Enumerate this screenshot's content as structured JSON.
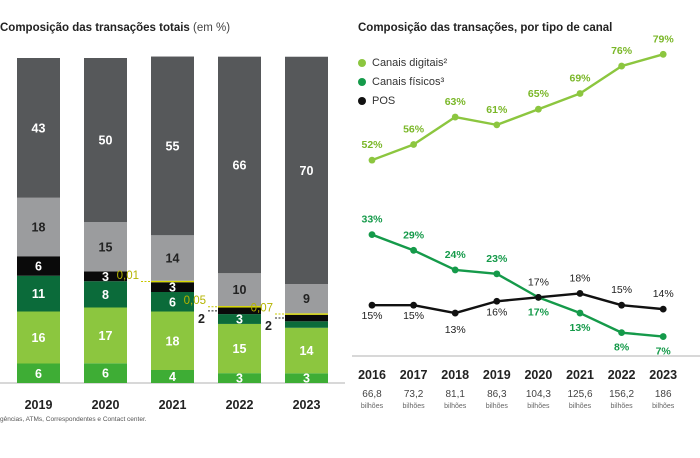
{
  "chart_data": [
    {
      "type": "bar",
      "stacked": true,
      "title": "Composição das transações totais",
      "title_unit": "(em %)",
      "categories": [
        "2019",
        "2020",
        "2021",
        "2022",
        "2023"
      ],
      "series": [
        {
          "segment": 1,
          "color": "#3ead35",
          "values": [
            6,
            6,
            4,
            3,
            3
          ]
        },
        {
          "segment": 2,
          "color": "#8cc63f",
          "values": [
            16,
            17,
            18,
            15,
            14
          ]
        },
        {
          "segment": 3,
          "color": "#0b6b3a",
          "values": [
            11,
            8,
            6,
            3,
            2
          ]
        },
        {
          "segment": 4,
          "color": "#0a0a0a",
          "values": [
            6,
            3,
            3,
            2,
            2
          ]
        },
        {
          "segment": 5,
          "color": "#d8d800",
          "values": [
            0,
            0,
            0.01,
            0.05,
            0.07
          ]
        },
        {
          "segment": 6,
          "color": "#9b9c9e",
          "values": [
            18,
            15,
            14,
            10,
            9
          ]
        },
        {
          "segment": 7,
          "color": "#56585a",
          "values": [
            43,
            50,
            55,
            66,
            70
          ]
        }
      ],
      "small_value_labels": [
        "",
        "",
        "0,01",
        "0,05",
        "0,07"
      ],
      "outside_labels": [
        "",
        "",
        "",
        "2",
        "2"
      ]
    },
    {
      "type": "line",
      "title": "Composição das transações, por tipo de canal",
      "x": [
        "2016",
        "2017",
        "2018",
        "2019",
        "2020",
        "2021",
        "2022",
        "2023"
      ],
      "x_sublabels": [
        "66,8",
        "73,2",
        "81,1",
        "86,3",
        "104,3",
        "125,6",
        "156,2",
        "186"
      ],
      "x_sublabel_unit": "bilhões",
      "ylim": [
        0,
        90
      ],
      "series": [
        {
          "name": "Canais digitais²",
          "color": "#8cc63f",
          "label_color": "#7ab728",
          "values": [
            52,
            56,
            63,
            61,
            65,
            69,
            76,
            79
          ],
          "labels": [
            "52%",
            "56%",
            "63%",
            "61%",
            "65%",
            "69%",
            "76%",
            "79%"
          ]
        },
        {
          "name": "Canais físicos³",
          "color": "#159a4a",
          "label_color": "#159a4a",
          "values": [
            33,
            29,
            24,
            23,
            17,
            13,
            8,
            7
          ],
          "labels": [
            "33%",
            "29%",
            "24%",
            "23%",
            "17%",
            "13%",
            "8%",
            "7%"
          ]
        },
        {
          "name": "POS",
          "color": "#111111",
          "label_color": "#222222",
          "values": [
            15,
            15,
            13,
            16,
            17,
            18,
            15,
            14
          ],
          "labels": [
            "15%",
            "15%",
            "13%",
            "16%",
            "17%",
            "18%",
            "15%",
            "14%"
          ]
        }
      ]
    }
  ],
  "footnote": "gências, ATMs, Correspondentes e Contact center."
}
